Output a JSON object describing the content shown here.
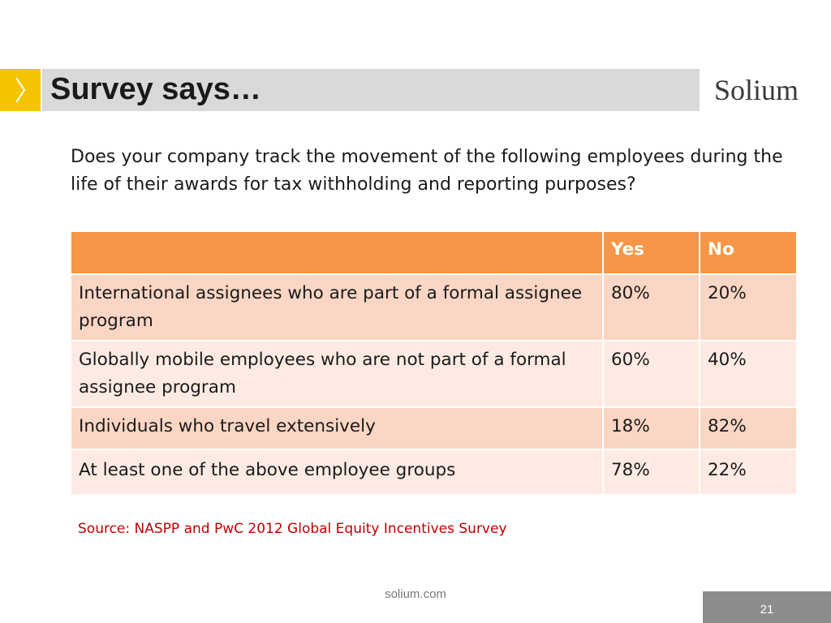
{
  "slide": {
    "title": "Survey says…",
    "logo_text": "Solium",
    "question": "Does your company track the movement of the following employees during the life of their awards for tax withholding and reporting purposes?",
    "source": "Source: NASPP and PwC 2012 Global Equity Incentives Survey",
    "footer_url": "solium.com",
    "page_number": "21"
  },
  "table": {
    "headers": [
      "",
      "Yes",
      "No"
    ],
    "rows": [
      {
        "label": "International assignees who are part of a formal assignee program",
        "yes": "80%",
        "no": "20%"
      },
      {
        "label": "Globally mobile employees who are not part of a formal assignee program",
        "yes": "60%",
        "no": "40%"
      },
      {
        "label": "Individuals who travel extensively",
        "yes": "18%",
        "no": "82%"
      },
      {
        "label": "At least one of the above employee groups",
        "yes": "78%",
        "no": "22%"
      }
    ]
  },
  "colors": {
    "accent_yellow": "#f5c400",
    "title_bar": "#d9d9d9",
    "header_orange": "#f79646",
    "row_dark": "#fbd6c4",
    "row_light": "#fdebe3",
    "source_red": "#c00000"
  },
  "icons": {
    "title_accent": "chevron-right-icon"
  }
}
